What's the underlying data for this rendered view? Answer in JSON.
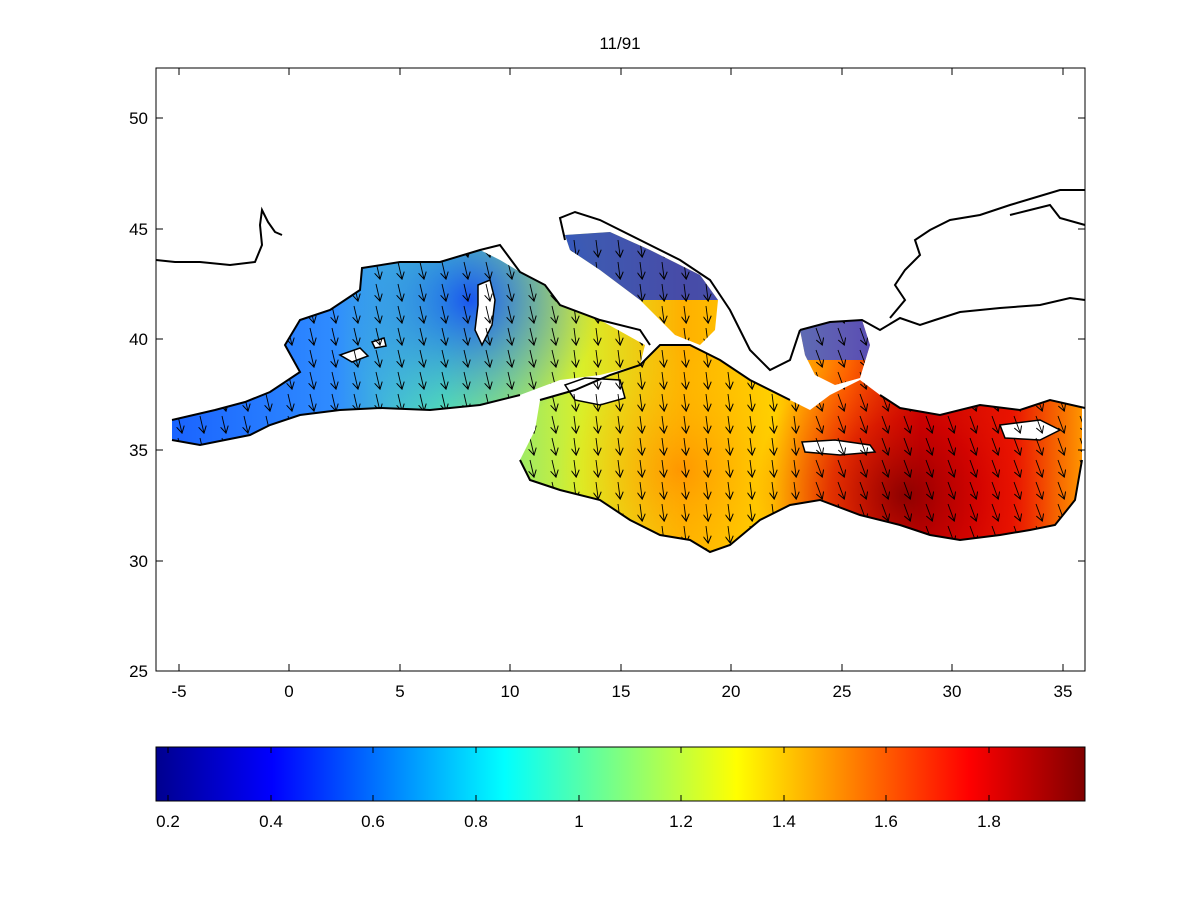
{
  "title": "11/91",
  "map": {
    "x_ticks": [
      "-5",
      "0",
      "5",
      "10",
      "15",
      "20",
      "25",
      "30",
      "35"
    ],
    "y_ticks": [
      "50",
      "45",
      "40",
      "35",
      "30",
      "25"
    ],
    "xlim": [
      -6,
      36
    ],
    "ylim": [
      25,
      52
    ]
  },
  "colorbar": {
    "ticks": [
      "0.2",
      "0.4",
      "0.6",
      "0.8",
      "1",
      "1.2",
      "1.4",
      "1.6",
      "1.8"
    ],
    "range": [
      0.15,
      2.0
    ],
    "colormap": "jet"
  },
  "arrow_color": "#000000",
  "coast_color": "#000000"
}
